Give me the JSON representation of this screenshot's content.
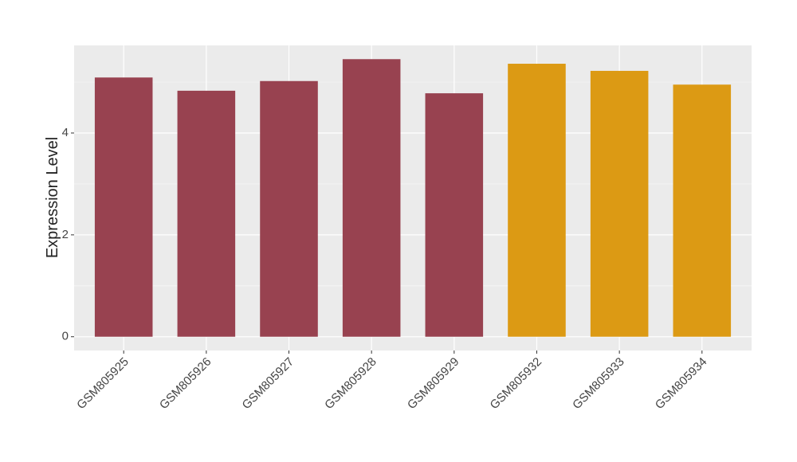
{
  "chart_data": {
    "type": "bar",
    "y_label": "Expression Level",
    "categories": [
      "GSM805925",
      "GSM805926",
      "GSM805927",
      "GSM805928",
      "GSM805929",
      "GSM805932",
      "GSM805933",
      "GSM805934"
    ],
    "values": [
      5.09,
      4.83,
      5.02,
      5.45,
      4.78,
      5.36,
      5.22,
      4.95
    ],
    "colors": [
      "#984250",
      "#984250",
      "#984250",
      "#984250",
      "#984250",
      "#dc9a14",
      "#dc9a14",
      "#dc9a14"
    ],
    "ylim": [
      -0.27,
      5.72
    ],
    "yticks": [
      0,
      2,
      4
    ],
    "yticks_minor": [
      1,
      3,
      5
    ],
    "grid": true
  }
}
